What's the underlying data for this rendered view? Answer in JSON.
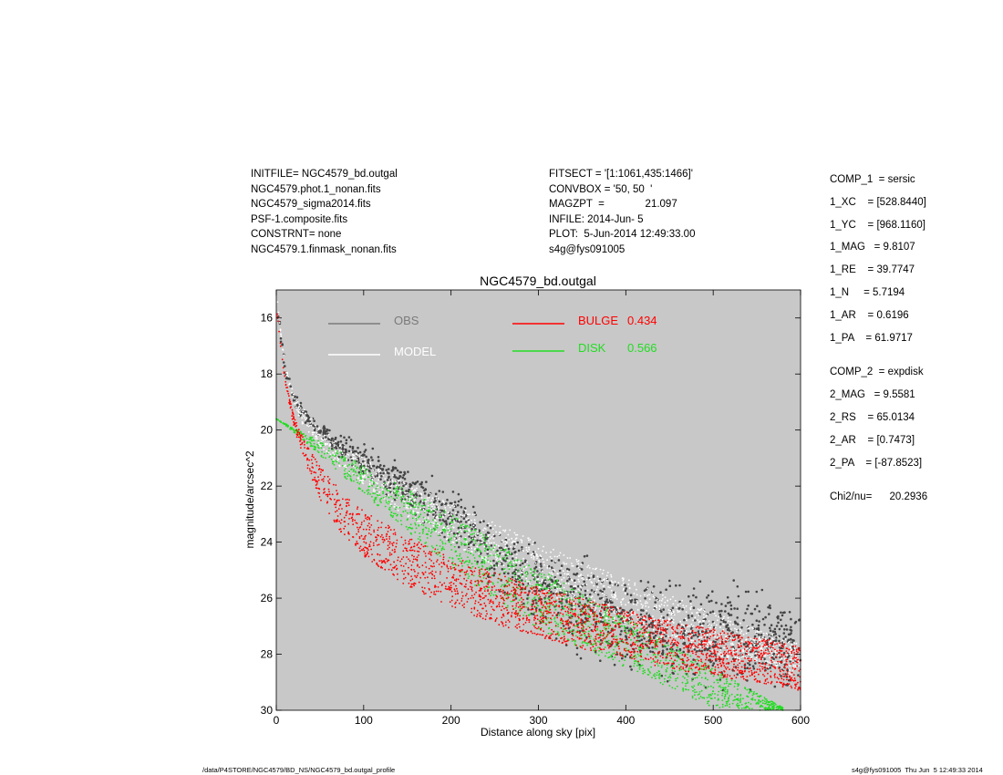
{
  "header_left": [
    "INITFILE= NGC4579_bd.outgal",
    "NGC4579.phot.1_nonan.fits",
    "NGC4579_sigma2014.fits",
    "PSF-1.composite.fits",
    "CONSTRNT= none",
    "NGC4579.1.finmask_nonan.fits"
  ],
  "header_mid": [
    "FITSECT = '[1:1061,435:1466]'",
    "CONVBOX = '50, 50  '",
    "MAGZPT  =              21.097",
    "INFILE: 2014-Jun- 5",
    "PLOT:  5-Jun-2014 12:49:33.00",
    "s4g@fys091005"
  ],
  "params": [
    {
      "text": "COMP_1  = sersic",
      "group": 0
    },
    {
      "text": "1_XC    = [528.8440]",
      "group": 0
    },
    {
      "text": "1_YC    = [968.1160]",
      "group": 0
    },
    {
      "text": "1_MAG   = 9.8107",
      "group": 0
    },
    {
      "text": "1_RE    = 39.7747",
      "group": 0
    },
    {
      "text": "1_N     = 5.7194",
      "group": 0
    },
    {
      "text": "1_AR    = 0.6196",
      "group": 0
    },
    {
      "text": "1_PA    = 61.9717",
      "group": 0
    },
    {
      "text": "COMP_2  = expdisk",
      "group": 1
    },
    {
      "text": "2_MAG   = 9.5581",
      "group": 1
    },
    {
      "text": "2_RS    = 65.0134",
      "group": 1
    },
    {
      "text": "2_AR    = [0.7473]",
      "group": 1
    },
    {
      "text": "2_PA    = [-87.8523]",
      "group": 1
    },
    {
      "text": "Chi2/nu=      20.2936",
      "group": 2
    }
  ],
  "footer": {
    "left": "/data/P4STORE/NGC4579/BD_NS/NGC4579_bd.outgal_profile",
    "right": "s4g@fys091005  Thu Jun  5 12:49:33 2014"
  },
  "colors": {
    "plot_bg": "#c8c8c8",
    "obs": "#444444",
    "obs_legend": "#7a7a7a",
    "model": "#ffffff",
    "bulge": "#ff0000",
    "disk": "#22dd22"
  },
  "chart_data": {
    "type": "scatter",
    "title": "NGC4579_bd.outgal",
    "xlabel": "Distance along sky [pix]",
    "ylabel": "magnitude/arcsec^2",
    "xlim": [
      0,
      600
    ],
    "ylim": [
      30,
      15
    ],
    "y_inverted": true,
    "xticks": [
      0,
      100,
      200,
      300,
      400,
      500,
      600
    ],
    "yticks": [
      16,
      18,
      20,
      22,
      24,
      26,
      28,
      30
    ],
    "legend": [
      {
        "name": "OBS",
        "color": "#7a7a7a",
        "value": ""
      },
      {
        "name": "MODEL",
        "color": "#ffffff",
        "value": ""
      },
      {
        "name": "BULGE",
        "color": "#ff0000",
        "value": "0.434"
      },
      {
        "name": "DISK",
        "color": "#22dd22",
        "value": "0.566"
      }
    ],
    "series": [
      {
        "name": "OBS",
        "color": "#444444",
        "x": [
          1,
          5,
          10,
          20,
          30,
          50,
          75,
          100,
          150,
          200,
          250,
          300,
          350,
          400,
          450,
          500,
          550,
          600
        ],
        "y": [
          15.4,
          16.6,
          17.8,
          18.9,
          19.4,
          20.0,
          20.6,
          21.1,
          22.1,
          23.0,
          24.4,
          25.5,
          26.3,
          26.8,
          27.2,
          27.4,
          27.5,
          27.6
        ],
        "spread": [
          0.2,
          0.3,
          0.3,
          0.3,
          0.35,
          0.4,
          0.5,
          0.7,
          0.9,
          1.1,
          1.4,
          1.6,
          1.8,
          1.9,
          2.0,
          2.0,
          2.0,
          2.0
        ]
      },
      {
        "name": "MODEL",
        "color": "#ffffff",
        "x": [
          1,
          5,
          10,
          20,
          30,
          50,
          75,
          100,
          150,
          200,
          250,
          300,
          350,
          400,
          450,
          500,
          550,
          600
        ],
        "ylow": [
          15.3,
          16.5,
          17.6,
          18.7,
          19.2,
          19.9,
          20.5,
          21.0,
          21.9,
          22.6,
          23.3,
          24.0,
          24.7,
          25.3,
          25.9,
          26.5,
          27.1,
          27.6
        ],
        "yhigh": [
          15.3,
          16.5,
          17.8,
          19.1,
          19.8,
          20.6,
          21.4,
          22.0,
          23.1,
          24.0,
          24.9,
          25.7,
          26.5,
          27.1,
          27.6,
          28.0,
          28.4,
          28.8
        ]
      },
      {
        "name": "BULGE",
        "color": "#ff0000",
        "x": [
          1,
          5,
          10,
          20,
          30,
          50,
          75,
          100,
          150,
          200,
          250,
          300,
          350,
          400,
          450,
          500,
          550,
          600
        ],
        "ylow": [
          15.8,
          17.0,
          18.1,
          19.5,
          20.2,
          21.3,
          22.2,
          22.9,
          23.8,
          24.5,
          25.1,
          25.6,
          26.0,
          26.4,
          26.8,
          27.1,
          27.4,
          27.7
        ],
        "yhigh": [
          15.8,
          17.0,
          18.3,
          19.9,
          20.9,
          22.5,
          23.7,
          24.5,
          25.6,
          26.3,
          26.9,
          27.4,
          27.8,
          28.2,
          28.5,
          28.8,
          29.0,
          29.3
        ]
      },
      {
        "name": "DISK",
        "color": "#22dd22",
        "x": [
          0,
          25,
          50,
          75,
          100,
          150,
          200,
          250,
          300,
          350,
          400,
          450,
          500,
          550,
          580
        ],
        "ylow": [
          19.6,
          20.0,
          20.4,
          20.8,
          21.3,
          22.1,
          23.0,
          24.0,
          24.9,
          25.8,
          26.7,
          27.6,
          28.5,
          29.4,
          29.9
        ],
        "yhigh": [
          19.6,
          20.2,
          20.9,
          21.6,
          22.3,
          23.6,
          24.9,
          26.1,
          27.1,
          27.8,
          28.5,
          29.2,
          29.9,
          30.0,
          30.0
        ]
      }
    ]
  }
}
